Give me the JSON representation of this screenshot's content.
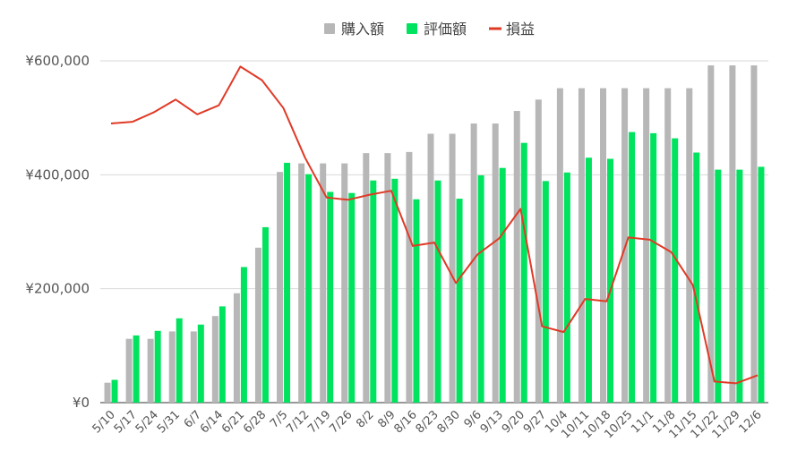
{
  "chart_data": {
    "type": "bar",
    "categories": [
      "5/10",
      "5/17",
      "5/24",
      "5/31",
      "6/7",
      "6/14",
      "6/21",
      "6/28",
      "7/5",
      "7/12",
      "7/19",
      "7/26",
      "8/2",
      "8/9",
      "8/16",
      "8/23",
      "8/30",
      "9/6",
      "9/13",
      "9/20",
      "9/27",
      "10/4",
      "10/11",
      "10/18",
      "10/25",
      "11/1",
      "11/8",
      "11/15",
      "11/22",
      "11/29",
      "12/6"
    ],
    "series": [
      {
        "name": "購入額",
        "kind": "bar",
        "color": "#b7b7b7",
        "values": [
          35000,
          112000,
          112000,
          125000,
          125000,
          152000,
          192000,
          272000,
          405000,
          420000,
          420000,
          420000,
          438000,
          438000,
          440000,
          472000,
          472000,
          490000,
          490000,
          512000,
          532000,
          552000,
          552000,
          552000,
          552000,
          552000,
          552000,
          552000,
          592000,
          592000,
          592000
        ]
      },
      {
        "name": "評価額",
        "kind": "bar",
        "color": "#00e35f",
        "values": [
          40000,
          118000,
          126000,
          148000,
          137000,
          169000,
          238000,
          308000,
          421000,
          401000,
          370000,
          368000,
          390000,
          393000,
          357000,
          390000,
          358000,
          399000,
          412000,
          456000,
          389000,
          404000,
          430000,
          428000,
          475000,
          473000,
          464000,
          439000,
          409000,
          409000,
          414000
        ]
      },
      {
        "name": "損益",
        "kind": "line",
        "color": "#e03a26",
        "values": [
          490000,
          493000,
          510000,
          532000,
          506000,
          522000,
          590000,
          566000,
          517000,
          430000,
          360000,
          356000,
          365000,
          372000,
          275000,
          281000,
          210000,
          260000,
          288000,
          340000,
          134000,
          124000,
          182000,
          178000,
          290000,
          286000,
          264000,
          206000,
          37000,
          34000,
          48000
        ]
      }
    ],
    "y_ticks": [
      "¥0",
      "¥200,000",
      "¥400,000",
      "¥600,000"
    ],
    "y_tick_values": [
      0,
      200000,
      400000,
      600000
    ],
    "ylim": [
      0,
      600000
    ],
    "xlabel": "",
    "ylabel": "",
    "grid": true,
    "legend_position": "top-center"
  }
}
